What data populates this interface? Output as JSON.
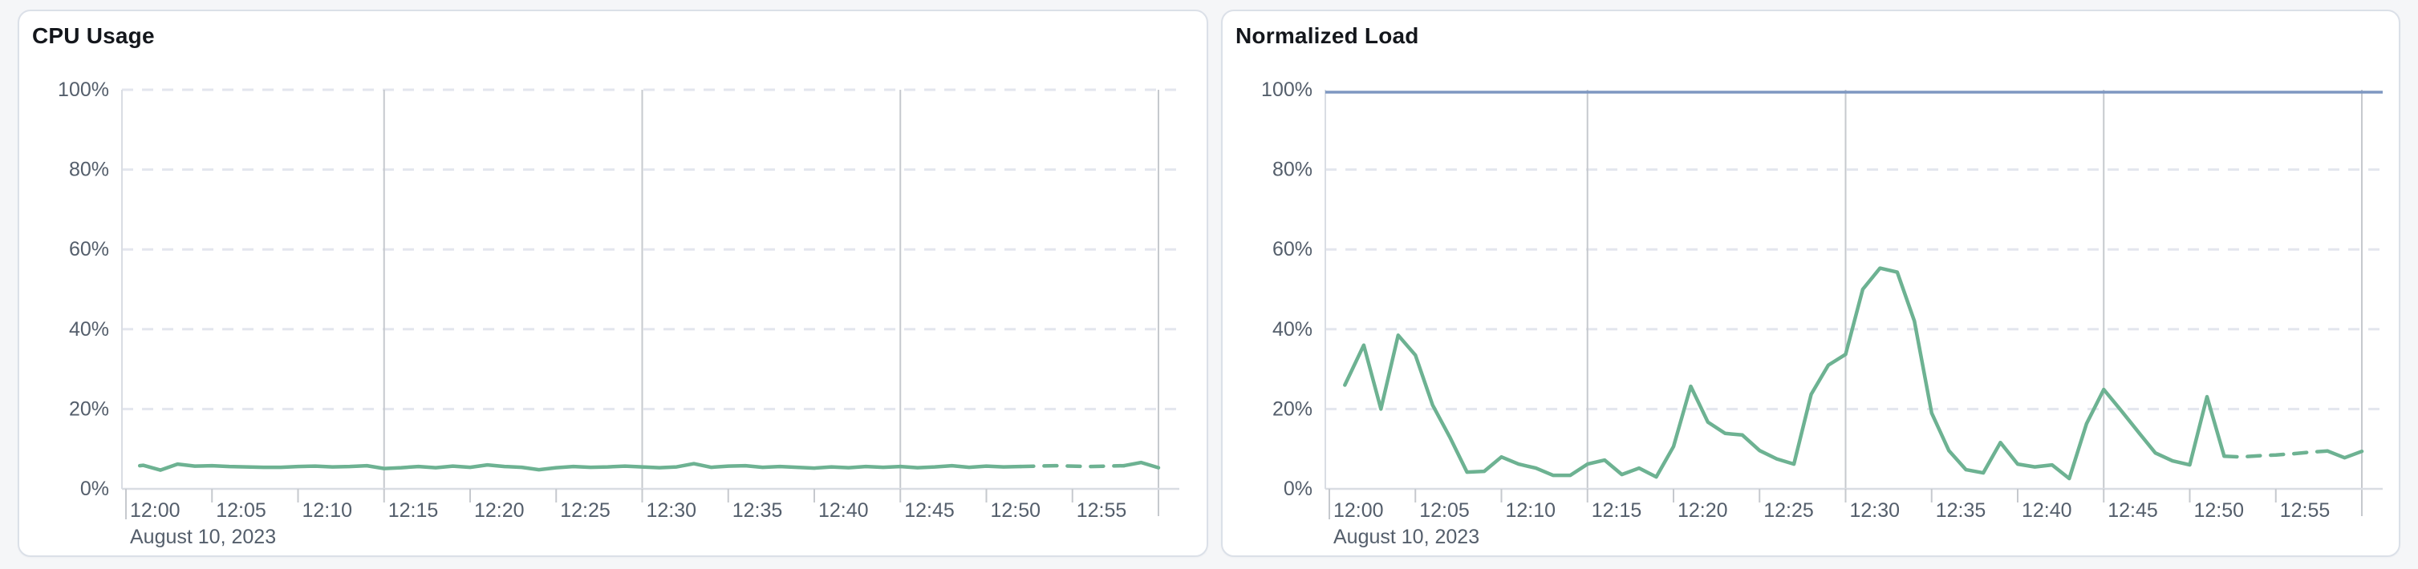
{
  "page": {
    "background_color": "#f5f6f8",
    "panel_background": "#ffffff",
    "panel_border_color": "#dbe0e8"
  },
  "panels": [
    {
      "id": "cpu-usage",
      "title": "CPU Usage"
    },
    {
      "id": "normalized-load",
      "title": "Normalized Load"
    }
  ],
  "chart_data": [
    {
      "type": "line",
      "title": "CPU Usage",
      "x_axis": {
        "start": "12:00",
        "end": "13:00",
        "tick_interval_minutes": 5,
        "tick_labels": [
          "12:00",
          "12:05",
          "12:10",
          "12:15",
          "12:20",
          "12:25",
          "12:30",
          "12:35",
          "12:40",
          "12:45",
          "12:50",
          "12:55"
        ],
        "date_label": "August 10, 2023"
      },
      "y_axis": {
        "ylim": [
          0,
          100
        ],
        "tick_values": [
          0,
          20,
          40,
          60,
          80,
          100
        ],
        "tick_labels": [
          "0%",
          "20%",
          "40%",
          "60%",
          "80%",
          "100%"
        ]
      },
      "grid": {
        "horizontal_dashed_values": [
          20,
          40,
          60,
          80,
          100
        ],
        "vertical_solid_minutes": [
          15,
          30,
          45,
          60
        ],
        "dashed_color": "#e3e6ee",
        "vertical_color": "#c6c9ce",
        "axis_color": "#d9dde3",
        "tick_color": "#c6c9ce",
        "label_color": "#545e6b"
      },
      "series": [
        {
          "name": "CPU Usage",
          "color": "#6db292",
          "dashed_from_minute": 52,
          "dashed_to_minute": 58,
          "points_minute_pct": [
            [
              0.8,
              5.8
            ],
            [
              1,
              5.9
            ],
            [
              2,
              4.7
            ],
            [
              3,
              6.2
            ],
            [
              4,
              5.7
            ],
            [
              5,
              5.8
            ],
            [
              6,
              5.6
            ],
            [
              7,
              5.5
            ],
            [
              8,
              5.4
            ],
            [
              9,
              5.4
            ],
            [
              10,
              5.6
            ],
            [
              11,
              5.7
            ],
            [
              12,
              5.5
            ],
            [
              13,
              5.6
            ],
            [
              14,
              5.8
            ],
            [
              15,
              5.1
            ],
            [
              16,
              5.3
            ],
            [
              17,
              5.6
            ],
            [
              18,
              5.3
            ],
            [
              19,
              5.7
            ],
            [
              20,
              5.4
            ],
            [
              21,
              6.0
            ],
            [
              22,
              5.6
            ],
            [
              23,
              5.4
            ],
            [
              24,
              4.8
            ],
            [
              25,
              5.3
            ],
            [
              26,
              5.6
            ],
            [
              27,
              5.4
            ],
            [
              28,
              5.5
            ],
            [
              29,
              5.7
            ],
            [
              30,
              5.5
            ],
            [
              31,
              5.3
            ],
            [
              32,
              5.5
            ],
            [
              33,
              6.3
            ],
            [
              34,
              5.4
            ],
            [
              35,
              5.7
            ],
            [
              36,
              5.8
            ],
            [
              37,
              5.4
            ],
            [
              38,
              5.6
            ],
            [
              39,
              5.4
            ],
            [
              40,
              5.2
            ],
            [
              41,
              5.5
            ],
            [
              42,
              5.3
            ],
            [
              43,
              5.6
            ],
            [
              44,
              5.4
            ],
            [
              45,
              5.6
            ],
            [
              46,
              5.3
            ],
            [
              47,
              5.5
            ],
            [
              48,
              5.8
            ],
            [
              49,
              5.4
            ],
            [
              50,
              5.7
            ],
            [
              51,
              5.5
            ],
            [
              52,
              5.6
            ],
            [
              53,
              5.7
            ],
            [
              54,
              5.8
            ],
            [
              55,
              5.7
            ],
            [
              56,
              5.6
            ],
            [
              57,
              5.7
            ],
            [
              58,
              5.8
            ],
            [
              59,
              6.6
            ],
            [
              60,
              5.3
            ]
          ]
        }
      ]
    },
    {
      "type": "line",
      "title": "Normalized Load",
      "x_axis": {
        "start": "12:00",
        "end": "13:00",
        "tick_interval_minutes": 5,
        "tick_labels": [
          "12:00",
          "12:05",
          "12:10",
          "12:15",
          "12:20",
          "12:25",
          "12:30",
          "12:35",
          "12:40",
          "12:45",
          "12:50",
          "12:55"
        ],
        "date_label": "August 10, 2023"
      },
      "y_axis": {
        "ylim": [
          0,
          100
        ],
        "tick_values": [
          0,
          20,
          40,
          60,
          80,
          100
        ],
        "tick_labels": [
          "0%",
          "20%",
          "40%",
          "60%",
          "80%",
          "100%"
        ]
      },
      "grid": {
        "horizontal_dashed_values": [
          20,
          40,
          60,
          80
        ],
        "vertical_solid_minutes": [
          15,
          30,
          45,
          60
        ],
        "dashed_color": "#e3e6ee",
        "vertical_color": "#c6c9ce",
        "axis_color": "#d9dde3",
        "tick_color": "#c6c9ce",
        "label_color": "#545e6b"
      },
      "limit_line": {
        "value_pct": 100,
        "color": "#7e97c1"
      },
      "series": [
        {
          "name": "Normalized Load",
          "color": "#6db292",
          "dashed_from_minute": 52,
          "dashed_to_minute": 58,
          "points_minute_pct": [
            [
              0.9,
              26
            ],
            [
              2,
              36
            ],
            [
              3,
              20
            ],
            [
              4,
              38.5
            ],
            [
              5,
              33.5
            ],
            [
              6,
              21
            ],
            [
              7,
              13
            ],
            [
              8,
              4.2
            ],
            [
              9,
              4.4
            ],
            [
              10,
              8
            ],
            [
              11,
              6.2
            ],
            [
              12,
              5.2
            ],
            [
              13,
              3.4
            ],
            [
              14,
              3.4
            ],
            [
              15,
              6.2
            ],
            [
              16,
              7.2
            ],
            [
              17,
              3.6
            ],
            [
              18,
              5.2
            ],
            [
              19,
              3
            ],
            [
              20,
              10.6
            ],
            [
              21,
              25.7
            ],
            [
              22,
              16.7
            ],
            [
              23,
              13.9
            ],
            [
              24,
              13.5
            ],
            [
              25,
              9.6
            ],
            [
              26,
              7.5
            ],
            [
              27,
              6.2
            ],
            [
              28,
              23.7
            ],
            [
              29,
              31
            ],
            [
              30,
              33.7
            ],
            [
              31,
              50
            ],
            [
              32,
              55.3
            ],
            [
              33,
              54.3
            ],
            [
              34,
              42
            ],
            [
              35,
              19
            ],
            [
              36,
              9.6
            ],
            [
              37,
              4.8
            ],
            [
              38,
              4
            ],
            [
              39,
              11.6
            ],
            [
              40,
              6.2
            ],
            [
              41,
              5.5
            ],
            [
              42,
              6
            ],
            [
              43,
              2.6
            ],
            [
              44,
              16.3
            ],
            [
              45,
              24.9
            ],
            [
              46,
              19.7
            ],
            [
              47,
              14.3
            ],
            [
              48,
              9
            ],
            [
              49,
              7
            ],
            [
              50,
              6
            ],
            [
              51,
              23.1
            ],
            [
              52,
              8.2
            ],
            [
              53,
              8
            ],
            [
              54,
              8.3
            ],
            [
              55,
              8.5
            ],
            [
              56,
              8.8
            ],
            [
              57,
              9.2
            ],
            [
              58,
              9.5
            ],
            [
              59,
              7.8
            ],
            [
              60,
              9.4
            ]
          ]
        }
      ]
    }
  ]
}
